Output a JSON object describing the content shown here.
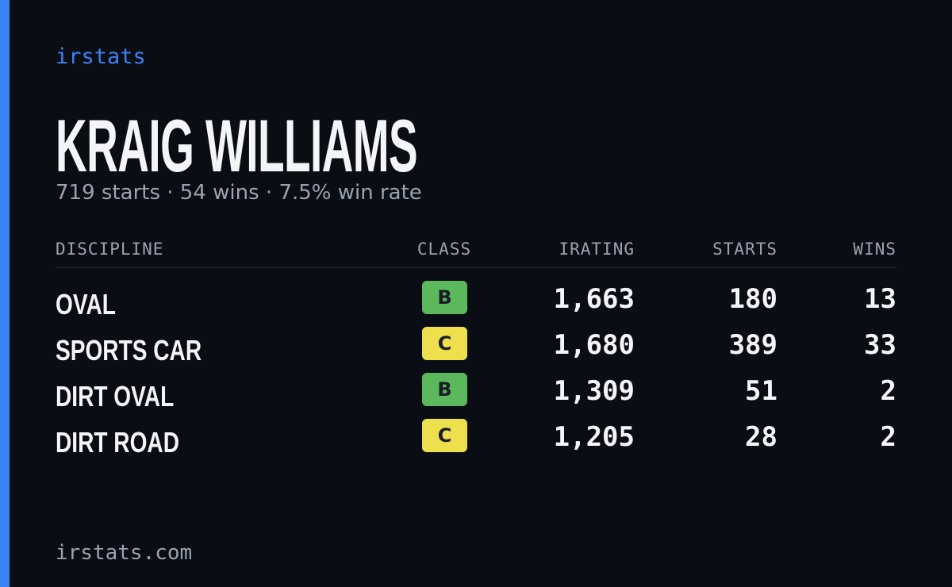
{
  "brand": "irstats",
  "profile": {
    "name": "KRAIG WILLIAMS",
    "summary": "719 starts · 54 wins · 7.5% win rate"
  },
  "table": {
    "headers": [
      "DISCIPLINE",
      "CLASS",
      "IRATING",
      "STARTS",
      "WINS"
    ],
    "rows": [
      {
        "discipline": "OVAL",
        "class": "B",
        "class_color": "#5cb85c",
        "irating": "1,663",
        "starts": "180",
        "wins": "13"
      },
      {
        "discipline": "SPORTS CAR",
        "class": "C",
        "class_color": "#ede04c",
        "irating": "1,680",
        "starts": "389",
        "wins": "33"
      },
      {
        "discipline": "DIRT OVAL",
        "class": "B",
        "class_color": "#5cb85c",
        "irating": "1,309",
        "starts": "51",
        "wins": "2"
      },
      {
        "discipline": "DIRT ROAD",
        "class": "C",
        "class_color": "#ede04c",
        "irating": "1,205",
        "starts": "28",
        "wins": "2"
      }
    ]
  },
  "footer": "irstats.com"
}
